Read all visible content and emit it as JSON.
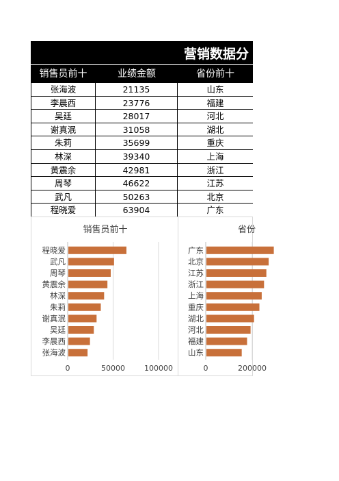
{
  "sheet": {
    "title": "营销数据分",
    "headers": [
      "销售员前十",
      "业绩金额",
      "省份前十"
    ],
    "rows": [
      {
        "name": "张海波",
        "amount": "21135",
        "province": "山东"
      },
      {
        "name": "李晨西",
        "amount": "23776",
        "province": "福建"
      },
      {
        "name": "吴廷",
        "amount": "28017",
        "province": "河北"
      },
      {
        "name": "谢真泯",
        "amount": "31058",
        "province": "湖北"
      },
      {
        "name": "朱莉",
        "amount": "35699",
        "province": "重庆"
      },
      {
        "name": "林深",
        "amount": "39340",
        "province": "上海"
      },
      {
        "name": "黄震余",
        "amount": "42981",
        "province": "浙江"
      },
      {
        "name": "周琴",
        "amount": "46622",
        "province": "江苏"
      },
      {
        "name": "武凡",
        "amount": "50263",
        "province": "北京"
      },
      {
        "name": "程晓爱",
        "amount": "63904",
        "province": "广东"
      }
    ]
  },
  "chart_data": [
    {
      "type": "bar",
      "orientation": "horizontal",
      "title": "销售员前十",
      "categories": [
        "张海波",
        "李晨西",
        "吴廷",
        "谢真泯",
        "朱莉",
        "林深",
        "黄震余",
        "周琴",
        "武凡",
        "程晓爱"
      ],
      "values": [
        21135,
        23776,
        28017,
        31058,
        35699,
        39340,
        42981,
        46622,
        50263,
        63904
      ],
      "xlim": [
        0,
        100000
      ],
      "xticks": [
        "0",
        "50000",
        "100000"
      ],
      "bar_color": "#C8703A",
      "grid": true
    },
    {
      "type": "bar",
      "orientation": "horizontal",
      "title": "省份",
      "categories": [
        "山东",
        "福建",
        "河北",
        "湖北",
        "重庆",
        "上海",
        "浙江",
        "江苏",
        "北京",
        "广东"
      ],
      "values": [
        152000,
        175000,
        190000,
        205000,
        228000,
        238000,
        248000,
        258000,
        268000,
        290000
      ],
      "xlim": [
        0,
        400000
      ],
      "xticks": [
        "0",
        "200000"
      ],
      "bar_color": "#C8703A",
      "grid": true
    }
  ]
}
